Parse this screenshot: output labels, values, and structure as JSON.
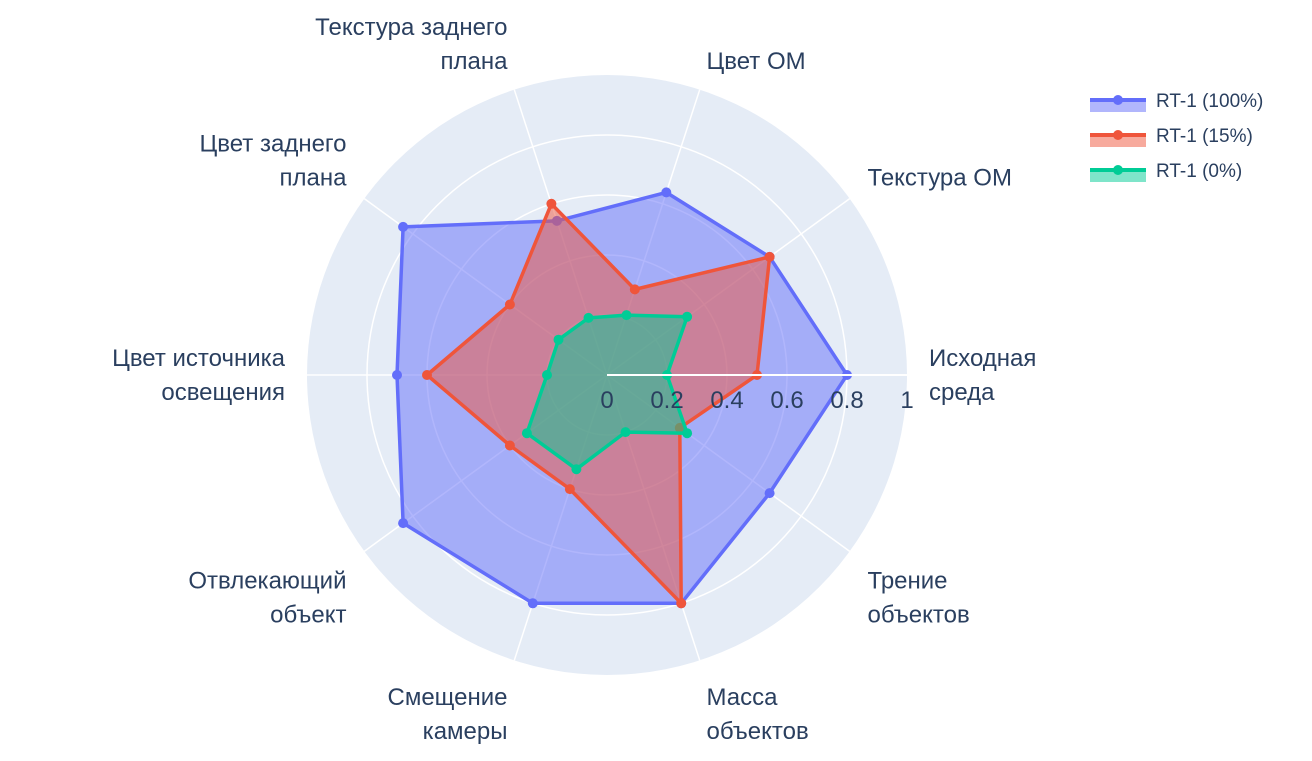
{
  "chart_data": {
    "type": "radar",
    "categories": [
      "Исходная среда",
      "Текстура ОМ",
      "Цвет ОМ",
      "Текстура заднего плана",
      "Цвет заднего плана",
      "Цвет источника освещения",
      "Отвлекающий объект",
      "Смещение камеры",
      "Масса объектов",
      "Трение объектов"
    ],
    "category_lines": [
      [
        "Исходная",
        "среда"
      ],
      [
        "Текстура ОМ"
      ],
      [
        "Цвет ОМ"
      ],
      [
        "Текстура заднего",
        "плана"
      ],
      [
        "Цвет заднего",
        "плана"
      ],
      [
        "Цвет источника",
        "освещения"
      ],
      [
        "Отвлекающий",
        "объект"
      ],
      [
        "Смещение",
        "камеры"
      ],
      [
        "Масса",
        "объектов"
      ],
      [
        "Трение",
        "объектов"
      ]
    ],
    "radial_ticks": [
      "0",
      "0.2",
      "0.4",
      "0.6",
      "0.8",
      "1"
    ],
    "radial_range": [
      0,
      1
    ],
    "series": [
      {
        "name": "RT-1 (100%)",
        "color": "#636efa",
        "values": [
          0.8,
          0.67,
          0.64,
          0.54,
          0.84,
          0.7,
          0.84,
          0.8,
          0.8,
          0.67
        ]
      },
      {
        "name": "RT-1 (15%)",
        "color": "#ef553b",
        "values": [
          0.5,
          0.67,
          0.3,
          0.6,
          0.4,
          0.6,
          0.4,
          0.4,
          0.8,
          0.3
        ]
      },
      {
        "name": "RT-1 (0%)",
        "color": "#00cc96",
        "values": [
          0.2,
          0.33,
          0.21,
          0.2,
          0.2,
          0.2,
          0.33,
          0.33,
          0.2,
          0.33
        ]
      }
    ],
    "legend_position": "top-right",
    "grid": true
  }
}
